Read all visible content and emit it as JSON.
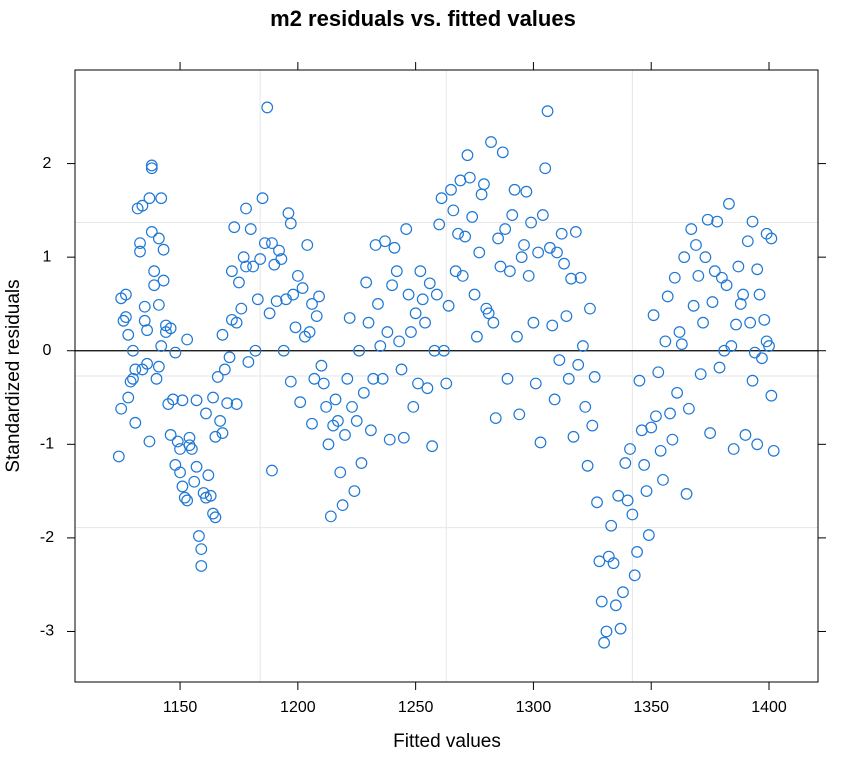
{
  "chart_data": {
    "type": "scatter",
    "title": "m2 residuals vs. fitted values",
    "x_label": "Fitted values",
    "y_label": "Standardized residuals",
    "color": "#1f78d6",
    "xlim": [
      1105.4,
      1420.8
    ],
    "ylim": [
      -3.54,
      3.0
    ],
    "xticks": [
      1150,
      1200,
      1250,
      1300,
      1350,
      1400
    ],
    "yticks": [
      -3,
      -2,
      -1,
      0,
      1,
      2
    ],
    "xgrid": [
      1184,
      1263,
      1342
    ],
    "ygrid": [
      1.37,
      -0.27,
      -1.89
    ],
    "hline": 0,
    "x": [
      1124,
      1125,
      1125,
      1126,
      1127,
      1127,
      1128,
      1128,
      1129,
      1130,
      1130,
      1131,
      1131,
      1132,
      1133,
      1133,
      1134,
      1134,
      1135,
      1135,
      1136,
      1136,
      1137,
      1137,
      1138,
      1138,
      1138,
      1139,
      1139,
      1140,
      1141,
      1141,
      1141,
      1142,
      1142,
      1143,
      1143,
      1144,
      1144,
      1145,
      1146,
      1146,
      1147,
      1148,
      1148,
      1149,
      1150,
      1150,
      1151,
      1151,
      1152,
      1153,
      1153,
      1154,
      1154,
      1155,
      1156,
      1157,
      1157,
      1158,
      1159,
      1159,
      1160,
      1161,
      1161,
      1162,
      1163,
      1164,
      1164,
      1165,
      1165,
      1166,
      1167,
      1168,
      1168,
      1169,
      1170,
      1171,
      1172,
      1172,
      1173,
      1174,
      1174,
      1175,
      1176,
      1177,
      1178,
      1178,
      1179,
      1180,
      1181,
      1182,
      1183,
      1184,
      1185,
      1186,
      1187,
      1188,
      1189,
      1189,
      1190,
      1191,
      1192,
      1193,
      1194,
      1195,
      1196,
      1197,
      1197,
      1198,
      1199,
      1200,
      1201,
      1202,
      1203,
      1204,
      1205,
      1206,
      1206,
      1207,
      1208,
      1209,
      1210,
      1211,
      1212,
      1213,
      1214,
      1215,
      1216,
      1217,
      1218,
      1219,
      1220,
      1221,
      1222,
      1223,
      1224,
      1225,
      1226,
      1227,
      1228,
      1229,
      1230,
      1231,
      1232,
      1233,
      1234,
      1235,
      1236,
      1237,
      1238,
      1239,
      1240,
      1241,
      1242,
      1243,
      1244,
      1245,
      1246,
      1247,
      1248,
      1249,
      1250,
      1251,
      1252,
      1253,
      1254,
      1255,
      1256,
      1257,
      1258,
      1259,
      1260,
      1261,
      1262,
      1263,
      1264,
      1265,
      1266,
      1267,
      1268,
      1269,
      1270,
      1271,
      1272,
      1273,
      1274,
      1275,
      1276,
      1277,
      1278,
      1279,
      1280,
      1281,
      1282,
      1283,
      1284,
      1285,
      1286,
      1287,
      1288,
      1289,
      1290,
      1291,
      1292,
      1293,
      1294,
      1295,
      1296,
      1297,
      1298,
      1299,
      1300,
      1301,
      1302,
      1303,
      1304,
      1305,
      1306,
      1307,
      1308,
      1309,
      1310,
      1311,
      1312,
      1313,
      1314,
      1315,
      1316,
      1317,
      1318,
      1319,
      1320,
      1321,
      1322,
      1323,
      1324,
      1325,
      1326,
      1327,
      1328,
      1329,
      1330,
      1331,
      1332,
      1333,
      1334,
      1335,
      1336,
      1337,
      1338,
      1339,
      1340,
      1341,
      1342,
      1343,
      1344,
      1345,
      1346,
      1347,
      1348,
      1349,
      1350,
      1351,
      1352,
      1353,
      1354,
      1355,
      1356,
      1357,
      1358,
      1359,
      1360,
      1361,
      1362,
      1363,
      1364,
      1365,
      1366,
      1367,
      1368,
      1369,
      1370,
      1371,
      1372,
      1373,
      1374,
      1375,
      1376,
      1377,
      1378,
      1379,
      1380,
      1381,
      1382,
      1383,
      1384,
      1385,
      1386,
      1387,
      1388,
      1389,
      1390,
      1391,
      1392,
      1393,
      1394,
      1395,
      1396,
      1397,
      1398,
      1399,
      1400,
      1401,
      1402,
      1401,
      1399,
      1395,
      1393
    ],
    "y": [
      -1.13,
      -0.62,
      0.56,
      0.32,
      0.6,
      0.36,
      0.17,
      -0.5,
      -0.33,
      0.0,
      -0.3,
      -0.2,
      -0.77,
      1.52,
      1.06,
      1.15,
      1.55,
      -0.2,
      0.47,
      0.32,
      -0.14,
      0.22,
      -0.97,
      1.63,
      1.98,
      1.95,
      1.27,
      0.7,
      0.85,
      -0.3,
      0.49,
      -0.17,
      1.2,
      1.63,
      0.05,
      0.75,
      1.08,
      0.2,
      0.27,
      -0.57,
      -0.9,
      0.24,
      -0.52,
      -0.02,
      -1.22,
      -0.97,
      -1.3,
      -1.05,
      -0.53,
      -1.45,
      -1.57,
      -1.6,
      0.12,
      -0.93,
      -1.01,
      -1.05,
      -1.4,
      -1.24,
      -0.53,
      -1.98,
      -2.3,
      -2.12,
      -1.52,
      -1.57,
      -0.67,
      -1.33,
      -1.55,
      -1.74,
      -0.5,
      -1.78,
      -0.92,
      -0.28,
      -0.75,
      0.17,
      -0.88,
      -0.2,
      -0.56,
      -0.07,
      0.85,
      0.33,
      1.32,
      0.3,
      -0.57,
      0.73,
      0.45,
      1.0,
      1.52,
      0.9,
      -0.12,
      1.3,
      0.9,
      0.0,
      0.55,
      0.98,
      1.63,
      1.15,
      2.6,
      0.4,
      1.15,
      -1.28,
      0.92,
      0.53,
      1.07,
      0.98,
      0.0,
      0.55,
      1.47,
      1.36,
      -0.33,
      0.6,
      0.25,
      0.8,
      -0.55,
      0.67,
      0.15,
      1.13,
      0.2,
      0.5,
      -0.78,
      -0.3,
      0.37,
      0.58,
      -0.16,
      -0.35,
      -0.6,
      -1.0,
      -1.77,
      -0.8,
      -0.52,
      -0.75,
      -1.3,
      -1.65,
      -0.9,
      -0.3,
      0.35,
      -0.6,
      -1.5,
      -0.75,
      0.0,
      -1.2,
      -0.45,
      0.73,
      0.3,
      -0.85,
      -0.3,
      1.13,
      0.5,
      0.05,
      -0.3,
      1.17,
      0.2,
      -0.95,
      0.7,
      1.1,
      0.85,
      0.1,
      -0.2,
      -0.93,
      1.3,
      0.6,
      0.2,
      -0.6,
      0.4,
      -0.35,
      0.85,
      0.55,
      0.3,
      -0.4,
      0.72,
      -1.02,
      0.0,
      0.6,
      1.35,
      1.63,
      0.0,
      -0.35,
      0.48,
      1.72,
      1.5,
      0.85,
      1.25,
      1.82,
      0.8,
      1.22,
      2.09,
      1.85,
      1.43,
      0.6,
      0.15,
      1.05,
      1.67,
      1.78,
      0.45,
      0.4,
      2.23,
      0.3,
      -0.72,
      1.2,
      0.9,
      2.12,
      1.3,
      -0.3,
      0.85,
      1.45,
      1.72,
      0.15,
      -0.68,
      1.0,
      1.13,
      1.7,
      0.8,
      1.37,
      0.3,
      -0.35,
      1.05,
      -0.98,
      1.45,
      1.95,
      2.56,
      1.1,
      0.27,
      -0.52,
      1.05,
      -0.1,
      1.25,
      0.93,
      0.37,
      -0.3,
      0.77,
      -0.92,
      1.27,
      -0.15,
      0.78,
      0.05,
      -0.6,
      -1.23,
      0.45,
      -0.8,
      -0.28,
      -1.62,
      -2.25,
      -2.68,
      -3.12,
      -3.0,
      -2.2,
      -1.87,
      -2.27,
      -2.72,
      -1.55,
      -2.97,
      -2.58,
      -1.2,
      -1.6,
      -1.05,
      -1.75,
      -2.4,
      -2.15,
      -0.32,
      -0.85,
      -1.22,
      -1.5,
      -1.97,
      -0.82,
      0.38,
      -0.7,
      -0.23,
      -1.07,
      -1.38,
      0.1,
      0.58,
      -0.67,
      -0.95,
      0.78,
      -0.45,
      0.2,
      0.07,
      1.0,
      -1.53,
      -0.62,
      1.3,
      0.48,
      1.13,
      0.8,
      -0.25,
      0.3,
      1.0,
      1.4,
      -0.88,
      0.52,
      0.85,
      1.38,
      -0.18,
      0.78,
      0.0,
      0.7,
      1.57,
      0.05,
      -1.05,
      0.28,
      0.9,
      0.5,
      0.6,
      -0.9,
      1.17,
      0.3,
      1.38,
      -0.02,
      0.87,
      0.6,
      -0.08,
      0.33,
      1.25,
      0.05,
      1.2,
      -1.07,
      -0.48,
      0.1,
      -1.0,
      -0.32
    ]
  }
}
